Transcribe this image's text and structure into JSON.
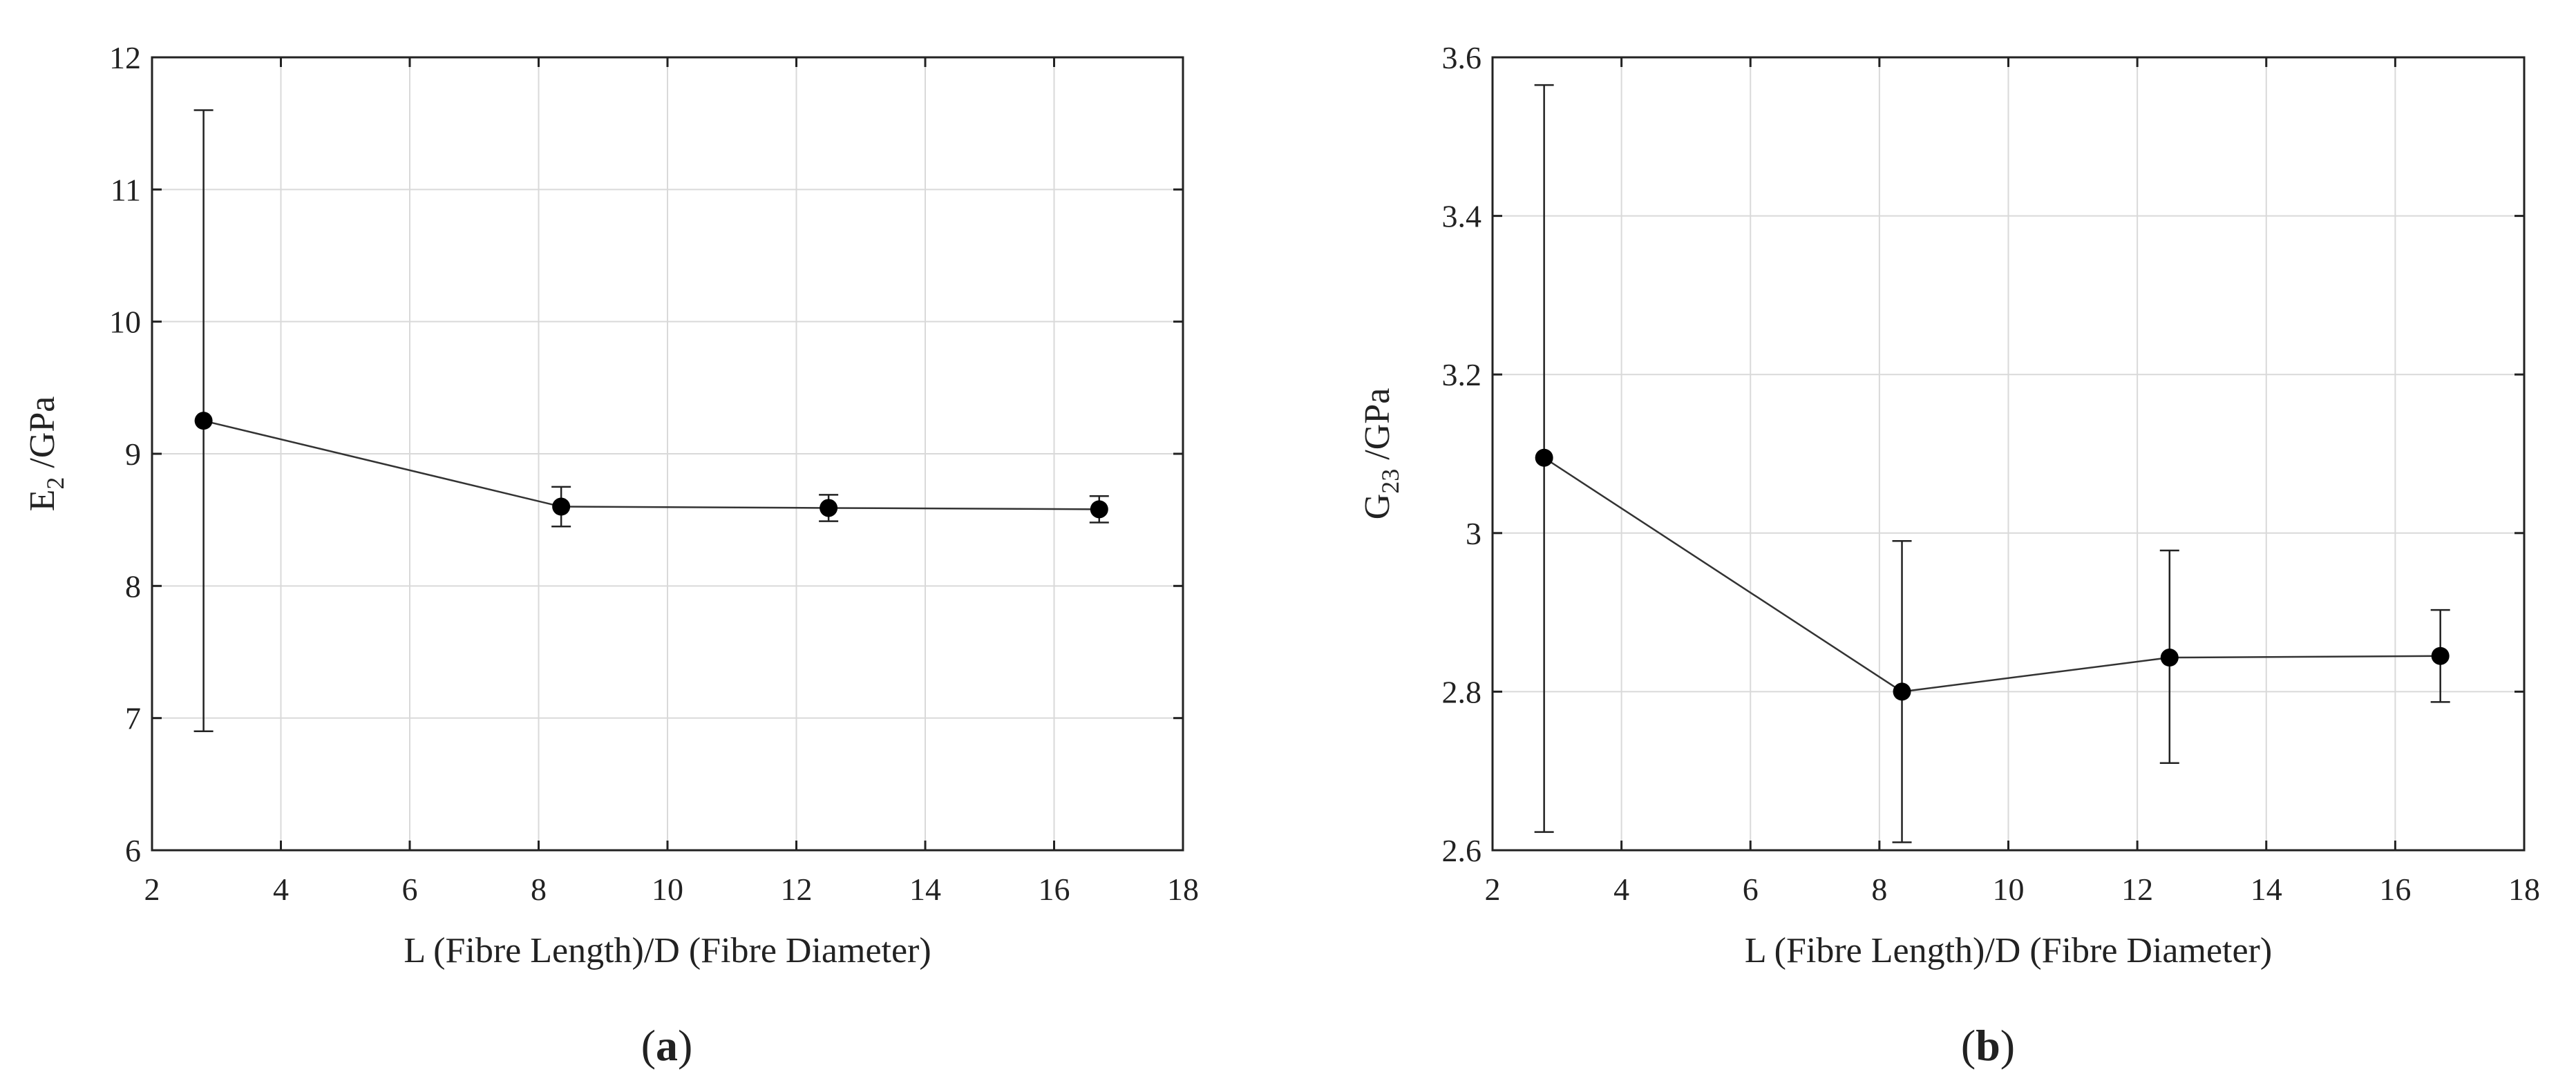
{
  "chart_data": [
    {
      "type": "scatter",
      "panel_label": "a",
      "xlabel": "L (Fibre Length)/D (Fibre Diameter)",
      "ylabel_main": "E",
      "ylabel_sub": "2",
      "ylabel_rest": " /GPa",
      "xlim": [
        2,
        18
      ],
      "ylim": [
        6,
        12
      ],
      "xticks": [
        2,
        4,
        6,
        8,
        10,
        12,
        14,
        16,
        18
      ],
      "yticks": [
        6,
        7,
        8,
        9,
        10,
        11,
        12
      ],
      "grid": true,
      "series": [
        {
          "x": [
            2.8,
            8.35,
            12.5,
            16.7
          ],
          "y": [
            9.25,
            8.6,
            8.59,
            8.58
          ],
          "y_low": [
            6.9,
            8.45,
            8.49,
            8.48
          ],
          "y_high": [
            11.6,
            8.75,
            8.69,
            8.68
          ]
        }
      ]
    },
    {
      "type": "scatter",
      "panel_label": "b",
      "xlabel": "L (Fibre Length)/D (Fibre Diameter)",
      "ylabel_main": "G",
      "ylabel_sub": "23",
      "ylabel_rest": " /GPa",
      "xlim": [
        2,
        18
      ],
      "ylim": [
        2.6,
        3.6
      ],
      "xticks": [
        2,
        4,
        6,
        8,
        10,
        12,
        14,
        16,
        18
      ],
      "yticks": [
        2.6,
        2.8,
        3,
        3.2,
        3.4,
        3.6
      ],
      "ytick_labels": [
        "2.6",
        "2.8",
        "3",
        "3.2",
        "3.4",
        "3.6"
      ],
      "grid": true,
      "series": [
        {
          "x": [
            2.8,
            8.35,
            12.5,
            16.7
          ],
          "y": [
            3.095,
            2.8,
            2.843,
            2.845
          ],
          "y_low": [
            2.623,
            2.61,
            2.71,
            2.787
          ],
          "y_high": [
            3.565,
            2.99,
            2.978,
            2.903
          ]
        }
      ]
    }
  ]
}
